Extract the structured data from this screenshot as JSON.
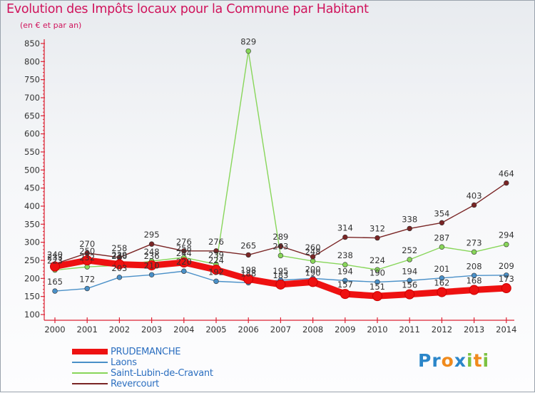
{
  "title": "Evolution des Impôts locaux pour la Commune par Habitant",
  "subtitle": "(en € et par an)",
  "chart_data": {
    "type": "line",
    "title": "Evolution des Impôts locaux pour la Commune par Habitant",
    "ylabel": "(en € et par an)",
    "xlabel": "",
    "categories": [
      "2000",
      "2001",
      "2002",
      "2003",
      "2004",
      "2005",
      "2006",
      "2007",
      "2008",
      "2009",
      "2010",
      "2011",
      "2012",
      "2013",
      "2014"
    ],
    "ylim": [
      100,
      850
    ],
    "yticks": [
      100,
      150,
      200,
      250,
      300,
      350,
      400,
      450,
      500,
      550,
      600,
      650,
      700,
      750,
      800,
      850
    ],
    "grid": false,
    "legend": "bottom-left",
    "series": [
      {
        "name": "PRUDEMANCHE",
        "color": "#ee1111",
        "values": [
          233,
          250,
          239,
          236,
          244,
          224,
          198,
          183,
          190,
          157,
          151,
          156,
          162,
          168,
          173
        ]
      },
      {
        "name": "Laons",
        "color": "#4a90c8",
        "values": [
          165,
          172,
          203,
          210,
          220,
          192,
          188,
          195,
          200,
          194,
          190,
          194,
          201,
          208,
          209
        ]
      },
      {
        "name": "Saint-Lubin-de-Cravant",
        "color": "#88d65a",
        "values": [
          223,
          232,
          236,
          248,
          258,
          239,
          829,
          263,
          248,
          238,
          224,
          252,
          287,
          273,
          294
        ]
      },
      {
        "name": "Revercourt",
        "color": "#7a2525",
        "values": [
          240,
          270,
          258,
          295,
          276,
          276,
          265,
          289,
          260,
          314,
          312,
          338,
          354,
          403,
          464
        ]
      }
    ]
  },
  "logo": {
    "letters": [
      "P",
      "r",
      "o",
      "x",
      "i",
      "t",
      "i"
    ]
  }
}
